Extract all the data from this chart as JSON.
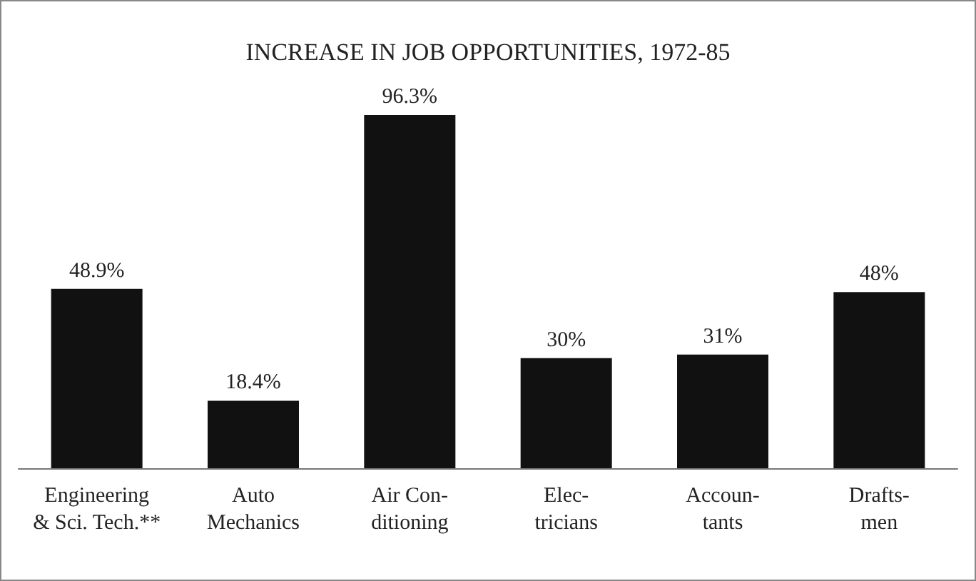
{
  "chart_data": {
    "type": "bar",
    "title": "INCREASE IN JOB OPPORTUNITIES, 1972-85",
    "categories": [
      "Engineering\n& Sci. Tech.**",
      "Auto\nMechanics",
      "Air Con-\nditioning",
      "Elec-\ntricians",
      "Accoun-\ntants",
      "Drafts-\nmen"
    ],
    "values": [
      48.9,
      18.4,
      96.3,
      30,
      31,
      48
    ],
    "value_labels": [
      "48.9%",
      "18.4%",
      "96.3%",
      "30%",
      "31%",
      "48%"
    ],
    "color": "#111111",
    "grid": false
  }
}
